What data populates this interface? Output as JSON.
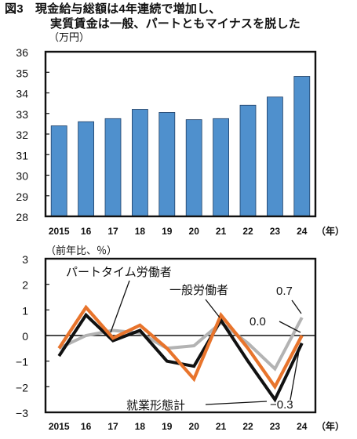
{
  "figure": {
    "title_line1": "図3　現金給与総額は4年連続で増加し、",
    "title_line2": "実質賃金は一般、パートともマイナスを脱した"
  },
  "chart_data": [
    {
      "type": "bar",
      "unit_label": "（万円）",
      "x_unit_label": "（年）",
      "categories": [
        "2015",
        "16",
        "17",
        "18",
        "19",
        "20",
        "21",
        "22",
        "23",
        "24"
      ],
      "values": [
        32.4,
        32.6,
        32.75,
        33.2,
        33.05,
        32.7,
        32.75,
        33.4,
        33.8,
        34.8
      ],
      "ylim": [
        28,
        36
      ],
      "yticks": [
        28,
        29,
        30,
        31,
        32,
        33,
        34,
        35,
        36
      ],
      "bar_color": "#4f90cd",
      "grid": false
    },
    {
      "type": "line",
      "unit_label": "（前年比、％）",
      "x_unit_label": "（年）",
      "categories": [
        "2015",
        "16",
        "17",
        "18",
        "19",
        "20",
        "21",
        "22",
        "23",
        "24"
      ],
      "ylim": [
        -3,
        3
      ],
      "yticks": [
        3,
        2,
        1,
        0,
        -1,
        -2,
        -3
      ],
      "series": [
        {
          "name": "就業形態計",
          "color": "#111111",
          "values": [
            -0.8,
            0.8,
            -0.2,
            0.2,
            -1.0,
            -1.2,
            0.6,
            -1.0,
            -2.5,
            -0.3
          ]
        },
        {
          "name": "一般労働者",
          "color": "#e8742c",
          "values": [
            -0.5,
            1.1,
            -0.1,
            0.4,
            -0.5,
            -1.7,
            0.8,
            -0.5,
            -2.0,
            0.0
          ]
        },
        {
          "name": "パートタイム労働者",
          "color": "#b3b3b3",
          "values": [
            -0.5,
            0.0,
            0.2,
            0.1,
            -0.5,
            -0.4,
            0.5,
            -0.3,
            -1.3,
            0.7
          ]
        }
      ],
      "annotations": [
        {
          "id": "part",
          "text": "パートタイム労働者"
        },
        {
          "id": "general",
          "text": "一般労働者"
        },
        {
          "id": "total",
          "text": "就業形態計"
        },
        {
          "id": "v_part",
          "text": "0.7"
        },
        {
          "id": "v_general",
          "text": "0.0"
        },
        {
          "id": "v_total",
          "text": "−0.3"
        }
      ]
    }
  ]
}
